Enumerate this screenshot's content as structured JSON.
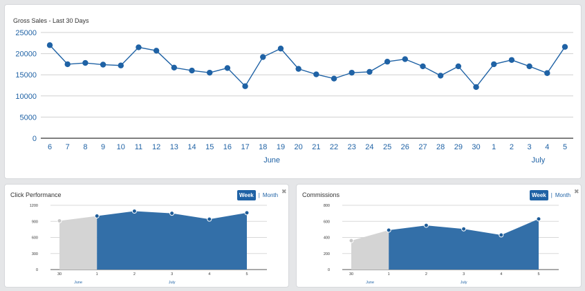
{
  "chart_data": [
    {
      "type": "line",
      "title": "Gross Sales - Last 30 Days",
      "categories": [
        "6",
        "7",
        "8",
        "9",
        "10",
        "11",
        "12",
        "13",
        "14",
        "15",
        "16",
        "17",
        "18",
        "19",
        "20",
        "21",
        "22",
        "23",
        "24",
        "25",
        "26",
        "27",
        "28",
        "29",
        "30",
        "1",
        "2",
        "3",
        "4",
        "5"
      ],
      "values": [
        22000,
        17500,
        17800,
        17400,
        17200,
        21500,
        20700,
        16700,
        16000,
        15500,
        16600,
        12300,
        19200,
        21200,
        16400,
        15100,
        14100,
        15500,
        15700,
        18100,
        18700,
        17000,
        14800,
        17000,
        12100,
        17500,
        18500,
        17000,
        15400,
        21600
      ],
      "ylim": [
        0,
        25000
      ],
      "yticks": [
        0,
        5000,
        10000,
        15000,
        20000,
        25000
      ],
      "months": [
        {
          "label": "June",
          "at_index": 12.5
        },
        {
          "label": "July",
          "at_index": 27.5
        }
      ],
      "color": "#1f62a5",
      "grid": true
    },
    {
      "type": "area",
      "title": "Click Performance",
      "categories": [
        "30",
        "1",
        "2",
        "3",
        "4",
        "5"
      ],
      "values": [
        910,
        1000,
        1090,
        1050,
        940,
        1060
      ],
      "ylim": [
        0,
        1200
      ],
      "yticks": [
        0,
        300,
        600,
        900,
        1200
      ],
      "months": [
        {
          "label": "June",
          "at_index": 0.5
        },
        {
          "label": "July",
          "at_index": 3.0
        }
      ],
      "colors": {
        "past": "#d4d4d4",
        "current": "#336fa8",
        "point_past": "#c8c8c8",
        "point_current": "#1f5d99"
      }
    },
    {
      "type": "area",
      "title": "Commissions",
      "categories": [
        "30",
        "1",
        "2",
        "3",
        "4",
        "5"
      ],
      "values": [
        360,
        490,
        550,
        505,
        430,
        630
      ],
      "ylim": [
        0,
        800
      ],
      "yticks": [
        0,
        200,
        400,
        600,
        800
      ],
      "months": [
        {
          "label": "June",
          "at_index": 0.5
        },
        {
          "label": "July",
          "at_index": 3.0
        }
      ],
      "colors": {
        "past": "#d4d4d4",
        "current": "#336fa8",
        "point_past": "#c8c8c8",
        "point_current": "#1f5d99"
      }
    }
  ],
  "toggle": {
    "week": "Week",
    "separator": "|",
    "month": "Month"
  },
  "close_glyph": "✖"
}
